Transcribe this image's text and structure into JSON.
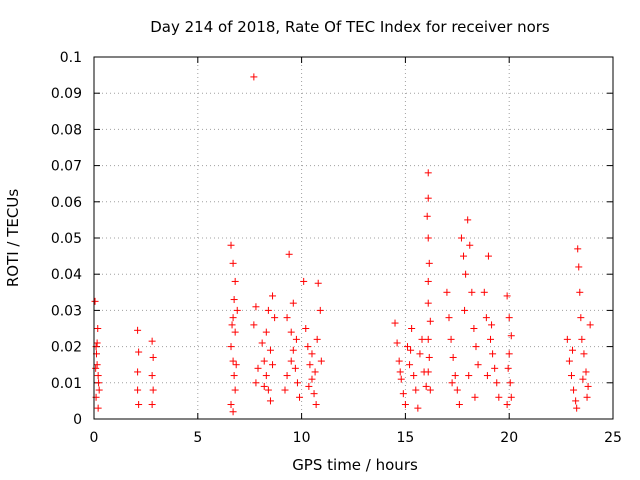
{
  "chart_data": {
    "type": "scatter",
    "title": "Day 214 of 2018, Rate Of TEC Index for receiver nors",
    "xlabel": "GPS time / hours",
    "ylabel": "ROTI / TECUs",
    "xlim": [
      0,
      25
    ],
    "ylim": [
      0,
      0.1
    ],
    "xticks": [
      "0",
      "5",
      "10",
      "15",
      "20",
      "25"
    ],
    "yticks": [
      "0",
      "0.01",
      "0.02",
      "0.03",
      "0.04",
      "0.05",
      "0.06",
      "0.07",
      "0.08",
      "0.09",
      "0.1"
    ],
    "grid": true,
    "marker": "+",
    "color": "#ff0000",
    "series": [
      {
        "name": "ROTI",
        "points": [
          [
            0.05,
            0.0325
          ],
          [
            0.1,
            0.02
          ],
          [
            0.15,
            0.015
          ],
          [
            0.2,
            0.012
          ],
          [
            0.25,
            0.008
          ],
          [
            0.1,
            0.006
          ],
          [
            0.2,
            0.003
          ],
          [
            0.18,
            0.025
          ],
          [
            0.12,
            0.018
          ],
          [
            0.22,
            0.01
          ],
          [
            0.08,
            0.014
          ],
          [
            0.15,
            0.021
          ],
          [
            2.1,
            0.0245
          ],
          [
            2.15,
            0.0185
          ],
          [
            2.1,
            0.013
          ],
          [
            2.1,
            0.008
          ],
          [
            2.15,
            0.004
          ],
          [
            2.8,
            0.0215
          ],
          [
            2.85,
            0.017
          ],
          [
            2.8,
            0.012
          ],
          [
            2.85,
            0.008
          ],
          [
            2.8,
            0.004
          ],
          [
            6.6,
            0.048
          ],
          [
            6.7,
            0.043
          ],
          [
            6.8,
            0.038
          ],
          [
            6.75,
            0.033
          ],
          [
            6.7,
            0.028
          ],
          [
            6.8,
            0.024
          ],
          [
            6.6,
            0.02
          ],
          [
            6.7,
            0.016
          ],
          [
            6.75,
            0.012
          ],
          [
            6.8,
            0.008
          ],
          [
            6.6,
            0.004
          ],
          [
            6.9,
            0.03
          ],
          [
            6.65,
            0.026
          ],
          [
            6.85,
            0.015
          ],
          [
            6.7,
            0.002
          ],
          [
            7.7,
            0.0945
          ],
          [
            7.8,
            0.031
          ],
          [
            7.7,
            0.026
          ],
          [
            7.9,
            0.014
          ],
          [
            7.8,
            0.01
          ],
          [
            8.1,
            0.021
          ],
          [
            8.2,
            0.016
          ],
          [
            8.3,
            0.012
          ],
          [
            8.4,
            0.008
          ],
          [
            8.5,
            0.005
          ],
          [
            8.6,
            0.034
          ],
          [
            8.7,
            0.028
          ],
          [
            8.5,
            0.019
          ],
          [
            8.3,
            0.024
          ],
          [
            8.6,
            0.015
          ],
          [
            8.2,
            0.009
          ],
          [
            8.4,
            0.03
          ],
          [
            9.4,
            0.0455
          ],
          [
            9.3,
            0.028
          ],
          [
            9.5,
            0.024
          ],
          [
            9.6,
            0.019
          ],
          [
            9.7,
            0.014
          ],
          [
            9.8,
            0.01
          ],
          [
            9.9,
            0.006
          ],
          [
            9.5,
            0.016
          ],
          [
            9.3,
            0.012
          ],
          [
            9.6,
            0.032
          ],
          [
            9.75,
            0.022
          ],
          [
            9.2,
            0.008
          ],
          [
            10.1,
            0.038
          ],
          [
            10.2,
            0.025
          ],
          [
            10.3,
            0.02
          ],
          [
            10.4,
            0.015
          ],
          [
            10.5,
            0.011
          ],
          [
            10.6,
            0.007
          ],
          [
            10.7,
            0.004
          ],
          [
            10.8,
            0.0375
          ],
          [
            10.9,
            0.03
          ],
          [
            10.5,
            0.018
          ],
          [
            10.75,
            0.022
          ],
          [
            10.35,
            0.009
          ],
          [
            10.65,
            0.013
          ],
          [
            10.95,
            0.016
          ],
          [
            14.5,
            0.0265
          ],
          [
            14.6,
            0.021
          ],
          [
            14.7,
            0.016
          ],
          [
            14.8,
            0.011
          ],
          [
            14.9,
            0.007
          ],
          [
            15.0,
            0.004
          ],
          [
            15.1,
            0.02
          ],
          [
            15.2,
            0.015
          ],
          [
            15.3,
            0.025
          ],
          [
            15.4,
            0.012
          ],
          [
            15.5,
            0.008
          ],
          [
            15.6,
            0.003
          ],
          [
            15.7,
            0.018
          ],
          [
            15.8,
            0.022
          ],
          [
            15.9,
            0.013
          ],
          [
            16.0,
            0.009
          ],
          [
            15.25,
            0.019
          ],
          [
            14.75,
            0.013
          ],
          [
            16.1,
            0.068
          ],
          [
            16.1,
            0.061
          ],
          [
            16.05,
            0.056
          ],
          [
            16.1,
            0.05
          ],
          [
            16.15,
            0.043
          ],
          [
            16.1,
            0.038
          ],
          [
            16.1,
            0.032
          ],
          [
            16.2,
            0.027
          ],
          [
            16.1,
            0.022
          ],
          [
            16.15,
            0.017
          ],
          [
            16.1,
            0.013
          ],
          [
            16.2,
            0.008
          ],
          [
            17.0,
            0.035
          ],
          [
            17.1,
            0.028
          ],
          [
            17.2,
            0.022
          ],
          [
            17.3,
            0.017
          ],
          [
            17.4,
            0.012
          ],
          [
            17.5,
            0.008
          ],
          [
            17.6,
            0.004
          ],
          [
            17.7,
            0.05
          ],
          [
            17.8,
            0.045
          ],
          [
            17.9,
            0.04
          ],
          [
            18.0,
            0.055
          ],
          [
            18.1,
            0.048
          ],
          [
            18.2,
            0.035
          ],
          [
            18.3,
            0.025
          ],
          [
            18.4,
            0.02
          ],
          [
            18.5,
            0.015
          ],
          [
            17.85,
            0.03
          ],
          [
            18.05,
            0.012
          ],
          [
            17.25,
            0.01
          ],
          [
            18.35,
            0.006
          ],
          [
            18.8,
            0.035
          ],
          [
            18.9,
            0.028
          ],
          [
            19.0,
            0.045
          ],
          [
            19.1,
            0.022
          ],
          [
            19.2,
            0.018
          ],
          [
            19.3,
            0.014
          ],
          [
            19.4,
            0.01
          ],
          [
            19.5,
            0.006
          ],
          [
            19.15,
            0.026
          ],
          [
            18.95,
            0.012
          ],
          [
            19.9,
            0.034
          ],
          [
            20.0,
            0.028
          ],
          [
            20.1,
            0.023
          ],
          [
            20.0,
            0.018
          ],
          [
            19.95,
            0.014
          ],
          [
            20.05,
            0.01
          ],
          [
            20.1,
            0.006
          ],
          [
            19.9,
            0.004
          ],
          [
            22.8,
            0.022
          ],
          [
            22.9,
            0.016
          ],
          [
            23.0,
            0.012
          ],
          [
            23.1,
            0.008
          ],
          [
            23.2,
            0.005
          ],
          [
            23.3,
            0.047
          ],
          [
            23.35,
            0.042
          ],
          [
            23.4,
            0.035
          ],
          [
            23.45,
            0.028
          ],
          [
            23.5,
            0.022
          ],
          [
            23.6,
            0.018
          ],
          [
            23.7,
            0.013
          ],
          [
            23.8,
            0.009
          ],
          [
            23.9,
            0.026
          ],
          [
            23.25,
            0.003
          ],
          [
            23.55,
            0.011
          ],
          [
            23.05,
            0.019
          ],
          [
            23.75,
            0.006
          ]
        ]
      }
    ]
  }
}
